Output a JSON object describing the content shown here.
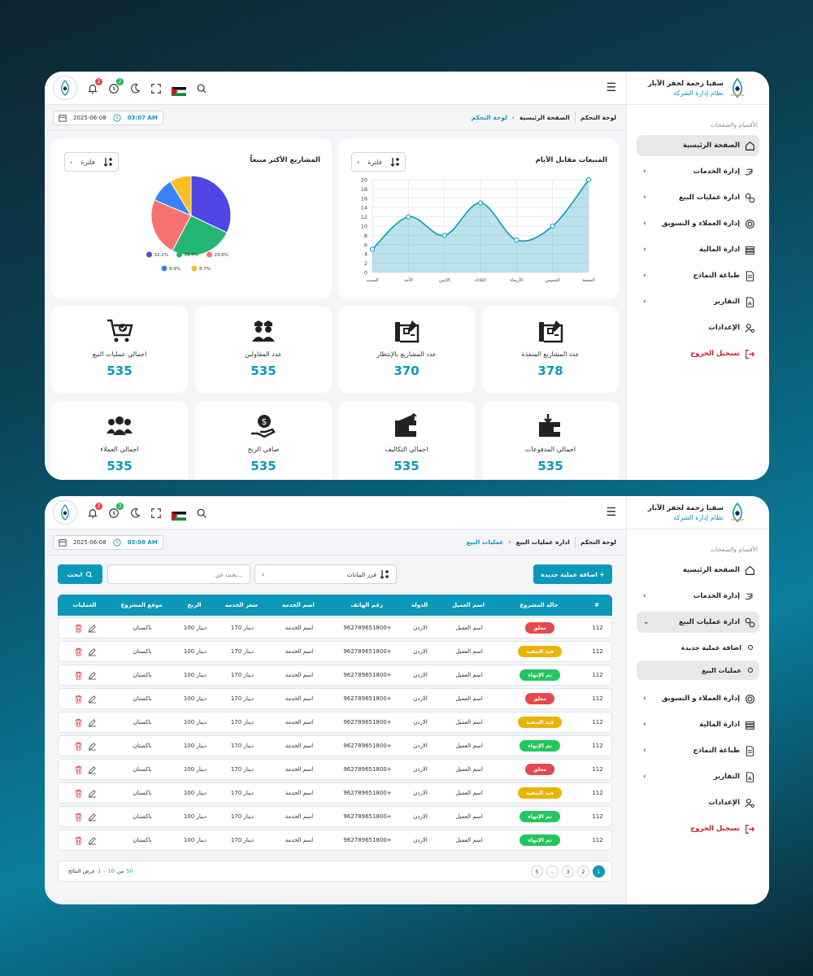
{
  "colors": {
    "accent": "#0b98b9",
    "danger": "#c6172b",
    "pie": [
      "#4f46e5",
      "#22b573",
      "#f87171",
      "#3b82f6",
      "#fbbf24"
    ]
  },
  "brand": {
    "name": "سقيا رحمة لحفر الآبار",
    "subtitle": "نظام إدارة الشركة"
  },
  "sidebar": {
    "caption": "الأقسام والصفحات",
    "items": [
      {
        "label": "الصفحة الرئيسية",
        "icon": "home-icon"
      },
      {
        "label": "إدارة الخدمات",
        "icon": "hand-service-icon"
      },
      {
        "label": "ادارة عمليات البيع",
        "icon": "coins-icon"
      },
      {
        "label": "إدارة العملاء و التسويق",
        "icon": "target-icon"
      },
      {
        "label": "ادارة المالية",
        "icon": "money-stack-icon"
      },
      {
        "label": "طباعة النماذج",
        "icon": "document-icon"
      },
      {
        "label": "التقارير",
        "icon": "report-icon"
      },
      {
        "label": "الإعدادات",
        "icon": "user-gear-icon"
      },
      {
        "label": "تسجيل الخروج",
        "icon": "logout-icon"
      }
    ],
    "subitems": [
      {
        "label": "اضافة عملية جديدة"
      },
      {
        "label": "عمليات البيع"
      }
    ]
  },
  "topbar": {
    "notif1": "2",
    "notif2": "2",
    "notif2b": "3"
  },
  "page1": {
    "date": "2025-06-08",
    "time": "03:07 AM",
    "crumb_root": "لوحة التحكم",
    "crumb_home": "الصفحة الرئيسية",
    "crumb_current": "لوحة التحكم",
    "sales_card_title": "المبيعات مقابل الأيام",
    "top_card_title": "المشاريع الأكثر مبيعاً",
    "filter_label": "فلترة",
    "stats": [
      {
        "label": "عدد المشاريع المنفذة",
        "value": "378",
        "icon": "building-plan-icon"
      },
      {
        "label": "عدد المشاريع بالإنتظار",
        "value": "370",
        "icon": "building-plan-icon"
      },
      {
        "label": "عدد المقاولين",
        "value": "535",
        "icon": "workers-icon"
      },
      {
        "label": "اجمالي عمليات البيع",
        "value": "535",
        "icon": "cart-icon"
      },
      {
        "label": "اجمالي المدفوعات",
        "value": "535",
        "icon": "wallet-down-icon"
      },
      {
        "label": "اجمالي التكاليف",
        "value": "535",
        "icon": "wallet-icon"
      },
      {
        "label": "صافي الربح",
        "value": "535",
        "icon": "hand-money-icon"
      },
      {
        "label": "اجمالي العملاء",
        "value": "535",
        "icon": "users-icon"
      }
    ]
  },
  "page2": {
    "date": "2025-06-08",
    "time": "03:08 AM",
    "crumb_root": "لوحة التحكم",
    "crumb_section": "ادارة عمليات البيع",
    "crumb_current": "عمليات البيع",
    "search_label": "ابحث",
    "search_placeholder": "بحث عن...",
    "sort_label": "فرز البيانات",
    "add_label": "اضافة عملية جديدة +",
    "headers": [
      "#",
      "حالة المشروع",
      "اسم العميل",
      "الدولة",
      "رقم الهاتف",
      "اسم الخدمة",
      "سعر الخدمة",
      "الربح",
      "موقع المشروع",
      "العمليات"
    ],
    "rows": [
      {
        "id": "112",
        "status": "معلق",
        "status_color": "#e5484d",
        "client": "اسم العميل",
        "country": "الاردن",
        "phone": "962789651800+",
        "service": "اسم الخدمة",
        "price": "170 دينار",
        "profit": "100 دينار",
        "location": "باكستان"
      },
      {
        "id": "112",
        "status": "قيد التنفيذ",
        "status_color": "#eab308",
        "client": "اسم العميل",
        "country": "الاردن",
        "phone": "962789651800+",
        "service": "اسم الخدمة",
        "price": "170 دينار",
        "profit": "100 دينار",
        "location": "باكستان"
      },
      {
        "id": "112",
        "status": "تم الإنهاء",
        "status_color": "#22c55e",
        "client": "اسم العميل",
        "country": "الاردن",
        "phone": "962789651800+",
        "service": "اسم الخدمة",
        "price": "170 دينار",
        "profit": "100 دينار",
        "location": "باكستان"
      },
      {
        "id": "112",
        "status": "معلق",
        "status_color": "#e5484d",
        "client": "اسم العميل",
        "country": "الاردن",
        "phone": "962789651800+",
        "service": "اسم الخدمة",
        "price": "170 دينار",
        "profit": "100 دينار",
        "location": "باكستان"
      },
      {
        "id": "112",
        "status": "قيد التنفيذ",
        "status_color": "#eab308",
        "client": "اسم العميل",
        "country": "الاردن",
        "phone": "962789651800+",
        "service": "اسم الخدمة",
        "price": "170 دينار",
        "profit": "100 دينار",
        "location": "باكستان"
      },
      {
        "id": "112",
        "status": "تم الإنهاء",
        "status_color": "#22c55e",
        "client": "اسم العميل",
        "country": "الاردن",
        "phone": "962789651800+",
        "service": "اسم الخدمة",
        "price": "170 دينار",
        "profit": "100 دينار",
        "location": "باكستان"
      },
      {
        "id": "112",
        "status": "معلق",
        "status_color": "#e5484d",
        "client": "اسم العميل",
        "country": "الاردن",
        "phone": "962789651800+",
        "service": "اسم الخدمة",
        "price": "170 دينار",
        "profit": "100 دينار",
        "location": "باكستان"
      },
      {
        "id": "112",
        "status": "قيد التنفيذ",
        "status_color": "#eab308",
        "client": "اسم العميل",
        "country": "الاردن",
        "phone": "962789651800+",
        "service": "اسم الخدمة",
        "price": "170 دينار",
        "profit": "100 دينار",
        "location": "باكستان"
      },
      {
        "id": "112",
        "status": "تم الإنهاء",
        "status_color": "#22c55e",
        "client": "اسم العميل",
        "country": "الاردن",
        "phone": "962789651800+",
        "service": "اسم الخدمة",
        "price": "170 دينار",
        "profit": "100 دينار",
        "location": "باكستان"
      },
      {
        "id": "112",
        "status": "تم الإنهاء",
        "status_color": "#22c55e",
        "client": "اسم العميل",
        "country": "الاردن",
        "phone": "962789651800+",
        "service": "اسم الخدمة",
        "price": "170 دينار",
        "profit": "100 دينار",
        "location": "باكستان"
      }
    ],
    "pagination": {
      "info_prefix": "عرض النتائج",
      "from": "1",
      "dash": "-",
      "to": "10",
      "of": "من",
      "total": "50",
      "pages": [
        "1",
        "2",
        "3",
        "...",
        "5"
      ]
    }
  },
  "chart_data": [
    {
      "type": "line",
      "categories": [
        "السبت",
        "الأحد",
        "الاثنين",
        "الثلاثاء",
        "الأربعاء",
        "الخميس",
        "الجمعة"
      ],
      "values": [
        5,
        12,
        8,
        15,
        7,
        10,
        20
      ],
      "ylim": [
        0,
        20
      ],
      "yticks": [
        0,
        2,
        4,
        6,
        8,
        10,
        12,
        14,
        16,
        18,
        20
      ],
      "grid": true,
      "area": true
    },
    {
      "type": "pie",
      "values": [
        32.1,
        25.7,
        23.6,
        9.9,
        8.7
      ],
      "labels": [
        "32.1%",
        "25.7%",
        "23.6%",
        "9.9%",
        "8.7%"
      ],
      "legend": "bottom"
    }
  ]
}
